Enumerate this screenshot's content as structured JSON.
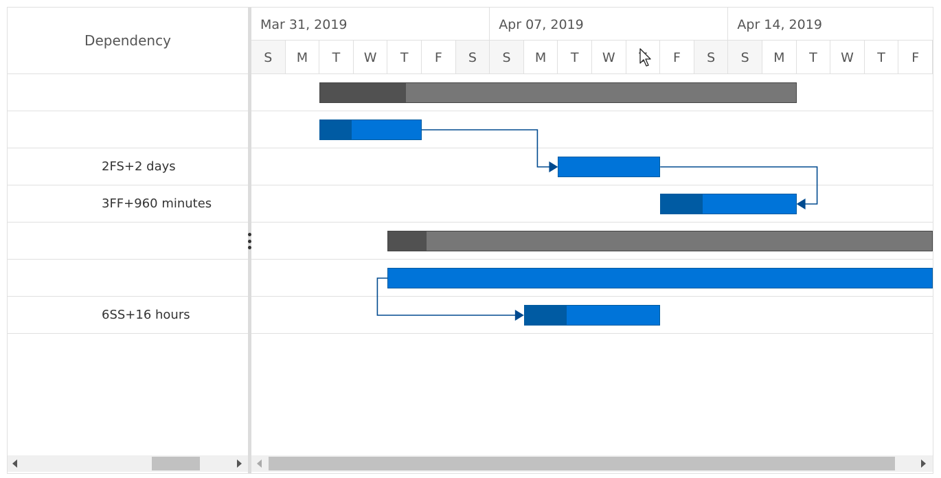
{
  "grid": {
    "header": "Dependency",
    "rows": [
      {
        "dependency": ""
      },
      {
        "dependency": ""
      },
      {
        "dependency": "2FS+2 days"
      },
      {
        "dependency": "3FF+960 minutes"
      },
      {
        "dependency": ""
      },
      {
        "dependency": ""
      },
      {
        "dependency": "6SS+16 hours"
      }
    ]
  },
  "timeline": {
    "weeks": [
      "Mar 31, 2019",
      "Apr 07, 2019",
      "Apr 14, 2019"
    ],
    "days": [
      "S",
      "M",
      "T",
      "W",
      "T",
      "F",
      "S",
      "S",
      "M",
      "T",
      "W",
      "T",
      "F",
      "S",
      "S",
      "M",
      "T",
      "W",
      "T",
      "F"
    ]
  },
  "tasks": [
    {
      "row": 0,
      "type": "parent",
      "start_day": 2,
      "duration_days": 14,
      "progress": 0.18
    },
    {
      "row": 1,
      "type": "child",
      "start_day": 2,
      "duration_days": 3,
      "progress": 0.31
    },
    {
      "row": 2,
      "type": "child",
      "start_day": 9,
      "duration_days": 3,
      "progress": 0
    },
    {
      "row": 3,
      "type": "child",
      "start_day": 12,
      "duration_days": 4,
      "progress": 0.31
    },
    {
      "row": 4,
      "type": "parent",
      "start_day": 4,
      "duration_days": 16,
      "progress": 0.07
    },
    {
      "row": 5,
      "type": "child",
      "start_day": 4,
      "duration_days": 16,
      "progress": 0
    },
    {
      "row": 6,
      "type": "child",
      "start_day": 8,
      "duration_days": 4,
      "progress": 0.31
    }
  ],
  "colors": {
    "parent_bar": "#777777",
    "parent_progress": "#515151",
    "child_bar": "#0074d9",
    "child_progress": "#005ba3",
    "connector": "#004a8f"
  },
  "icons": {
    "splitter": "vertical-ellipsis-icon",
    "scroll_left": "caret-left-icon",
    "scroll_right": "caret-right-icon",
    "cursor": "mouse-pointer-icon"
  }
}
